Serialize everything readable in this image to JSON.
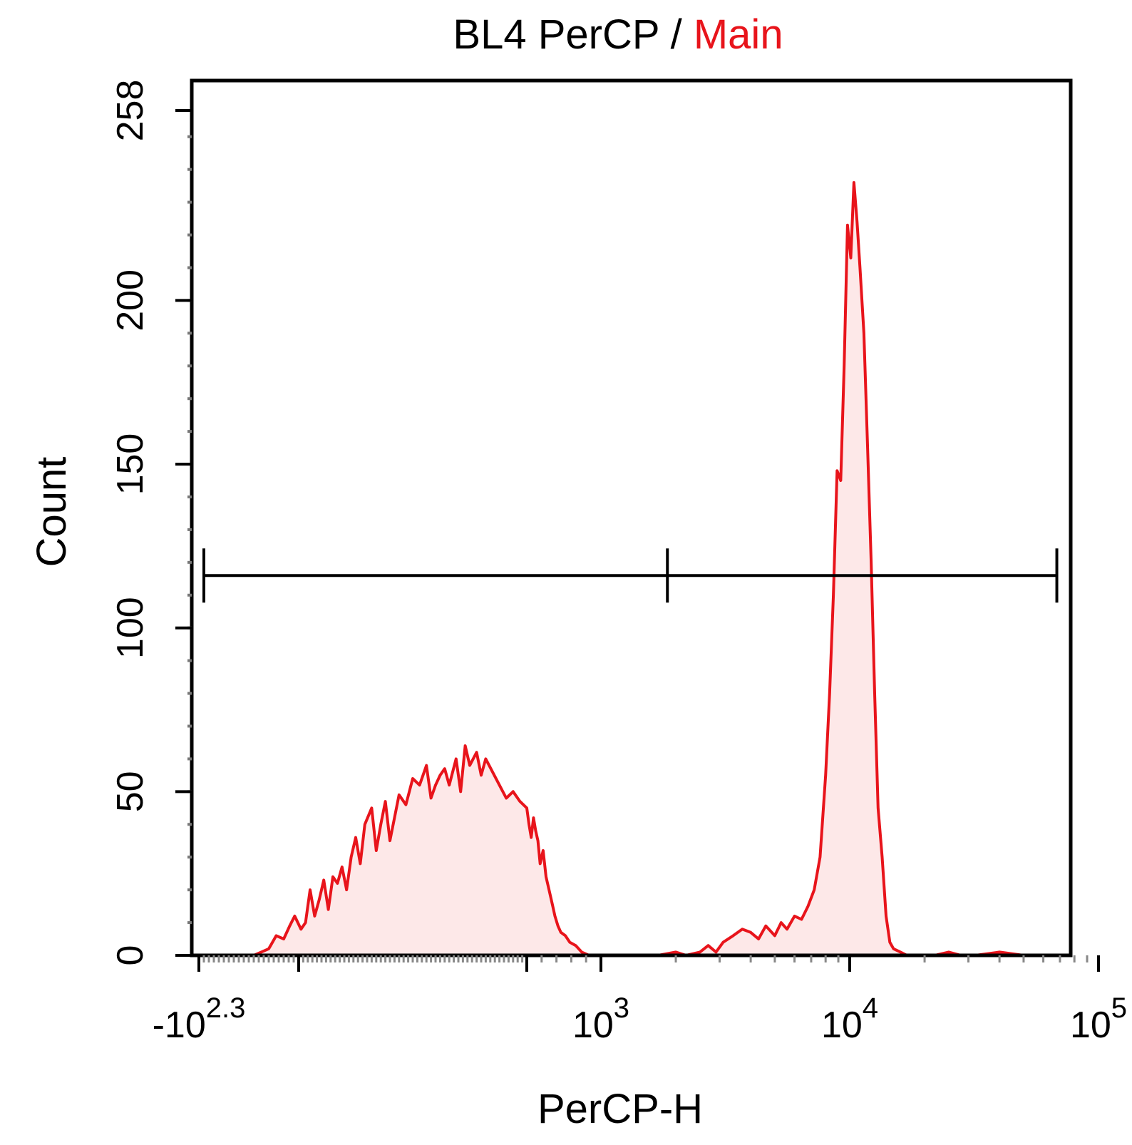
{
  "chart_data": {
    "type": "histogram",
    "title": {
      "prefix": "BL4 PerCP / ",
      "highlight": "Main",
      "highlight_color": "#e8141b"
    },
    "xlabel": "PerCP-H",
    "ylabel": "Count",
    "x_scale": "biexponential",
    "ylim": [
      0,
      258
    ],
    "y_ticks": [
      {
        "value": 0,
        "label": "0"
      },
      {
        "value": 50,
        "label": "50"
      },
      {
        "value": 100,
        "label": "100"
      },
      {
        "value": 150,
        "label": "150"
      },
      {
        "value": 200,
        "label": "200"
      },
      {
        "value": 258,
        "label": "258"
      }
    ],
    "x_ticks": [
      {
        "value": -200,
        "base": "-10",
        "exp": "2.3"
      },
      {
        "value": 1000,
        "base": "10",
        "exp": "3"
      },
      {
        "value": 10000,
        "base": "10",
        "exp": "4"
      },
      {
        "value": 100000,
        "base": "10",
        "exp": "5"
      }
    ],
    "series": [
      {
        "color": "#e8141b",
        "fill": "#fde8e8",
        "points": [
          [
            -145,
            0
          ],
          [
            -130,
            0
          ],
          [
            -110,
            0
          ],
          [
            -90,
            0
          ],
          [
            -75,
            1
          ],
          [
            -60,
            2
          ],
          [
            -45,
            6
          ],
          [
            -30,
            5
          ],
          [
            -18,
            9
          ],
          [
            -8,
            12
          ],
          [
            5,
            8
          ],
          [
            15,
            10
          ],
          [
            25,
            20
          ],
          [
            35,
            12
          ],
          [
            45,
            17
          ],
          [
            55,
            23
          ],
          [
            65,
            14
          ],
          [
            75,
            24
          ],
          [
            85,
            22
          ],
          [
            95,
            27
          ],
          [
            105,
            20
          ],
          [
            115,
            30
          ],
          [
            125,
            36
          ],
          [
            135,
            28
          ],
          [
            145,
            40
          ],
          [
            160,
            45
          ],
          [
            170,
            32
          ],
          [
            180,
            40
          ],
          [
            190,
            47
          ],
          [
            200,
            35
          ],
          [
            210,
            42
          ],
          [
            220,
            49
          ],
          [
            235,
            46
          ],
          [
            250,
            54
          ],
          [
            265,
            52
          ],
          [
            280,
            58
          ],
          [
            290,
            48
          ],
          [
            300,
            52
          ],
          [
            310,
            55
          ],
          [
            320,
            57
          ],
          [
            330,
            52
          ],
          [
            345,
            60
          ],
          [
            355,
            50
          ],
          [
            365,
            64
          ],
          [
            375,
            58
          ],
          [
            390,
            62
          ],
          [
            400,
            55
          ],
          [
            410,
            60
          ],
          [
            425,
            56
          ],
          [
            440,
            52
          ],
          [
            455,
            48
          ],
          [
            470,
            50
          ],
          [
            485,
            47
          ],
          [
            500,
            45
          ],
          [
            515,
            40
          ],
          [
            530,
            36
          ],
          [
            545,
            42
          ],
          [
            560,
            38
          ],
          [
            575,
            35
          ],
          [
            590,
            28
          ],
          [
            610,
            32
          ],
          [
            630,
            24
          ],
          [
            650,
            20
          ],
          [
            670,
            16
          ],
          [
            690,
            12
          ],
          [
            710,
            9
          ],
          [
            730,
            7
          ],
          [
            760,
            6
          ],
          [
            790,
            4
          ],
          [
            830,
            3
          ],
          [
            870,
            1
          ],
          [
            920,
            0
          ],
          [
            1000,
            0
          ],
          [
            1100,
            0
          ],
          [
            1300,
            0
          ],
          [
            1500,
            0
          ],
          [
            1700,
            0
          ],
          [
            2000,
            1
          ],
          [
            2200,
            0
          ],
          [
            2500,
            1
          ],
          [
            2700,
            3
          ],
          [
            2900,
            1
          ],
          [
            3100,
            4
          ],
          [
            3400,
            6
          ],
          [
            3700,
            8
          ],
          [
            4000,
            7
          ],
          [
            4300,
            5
          ],
          [
            4600,
            9
          ],
          [
            5000,
            6
          ],
          [
            5300,
            10
          ],
          [
            5600,
            8
          ],
          [
            6000,
            12
          ],
          [
            6400,
            11
          ],
          [
            6800,
            15
          ],
          [
            7200,
            20
          ],
          [
            7600,
            30
          ],
          [
            8000,
            55
          ],
          [
            8300,
            80
          ],
          [
            8600,
            110
          ],
          [
            8900,
            148
          ],
          [
            9200,
            145
          ],
          [
            9500,
            180
          ],
          [
            9800,
            223
          ],
          [
            10100,
            213
          ],
          [
            10400,
            236
          ],
          [
            10700,
            224
          ],
          [
            11000,
            210
          ],
          [
            11400,
            190
          ],
          [
            11800,
            155
          ],
          [
            12200,
            120
          ],
          [
            12600,
            80
          ],
          [
            13000,
            45
          ],
          [
            13500,
            30
          ],
          [
            14000,
            12
          ],
          [
            14500,
            4
          ],
          [
            15000,
            2
          ],
          [
            16000,
            1
          ],
          [
            17000,
            0
          ],
          [
            19000,
            0
          ],
          [
            22000,
            0
          ],
          [
            25000,
            1
          ],
          [
            28000,
            0
          ],
          [
            32000,
            0
          ],
          [
            40000,
            1
          ],
          [
            50000,
            0
          ],
          [
            60000,
            0
          ]
        ]
      }
    ],
    "gate": {
      "x_start": -190,
      "x_mid": 1850,
      "x_end": 68000,
      "y": 116
    }
  }
}
